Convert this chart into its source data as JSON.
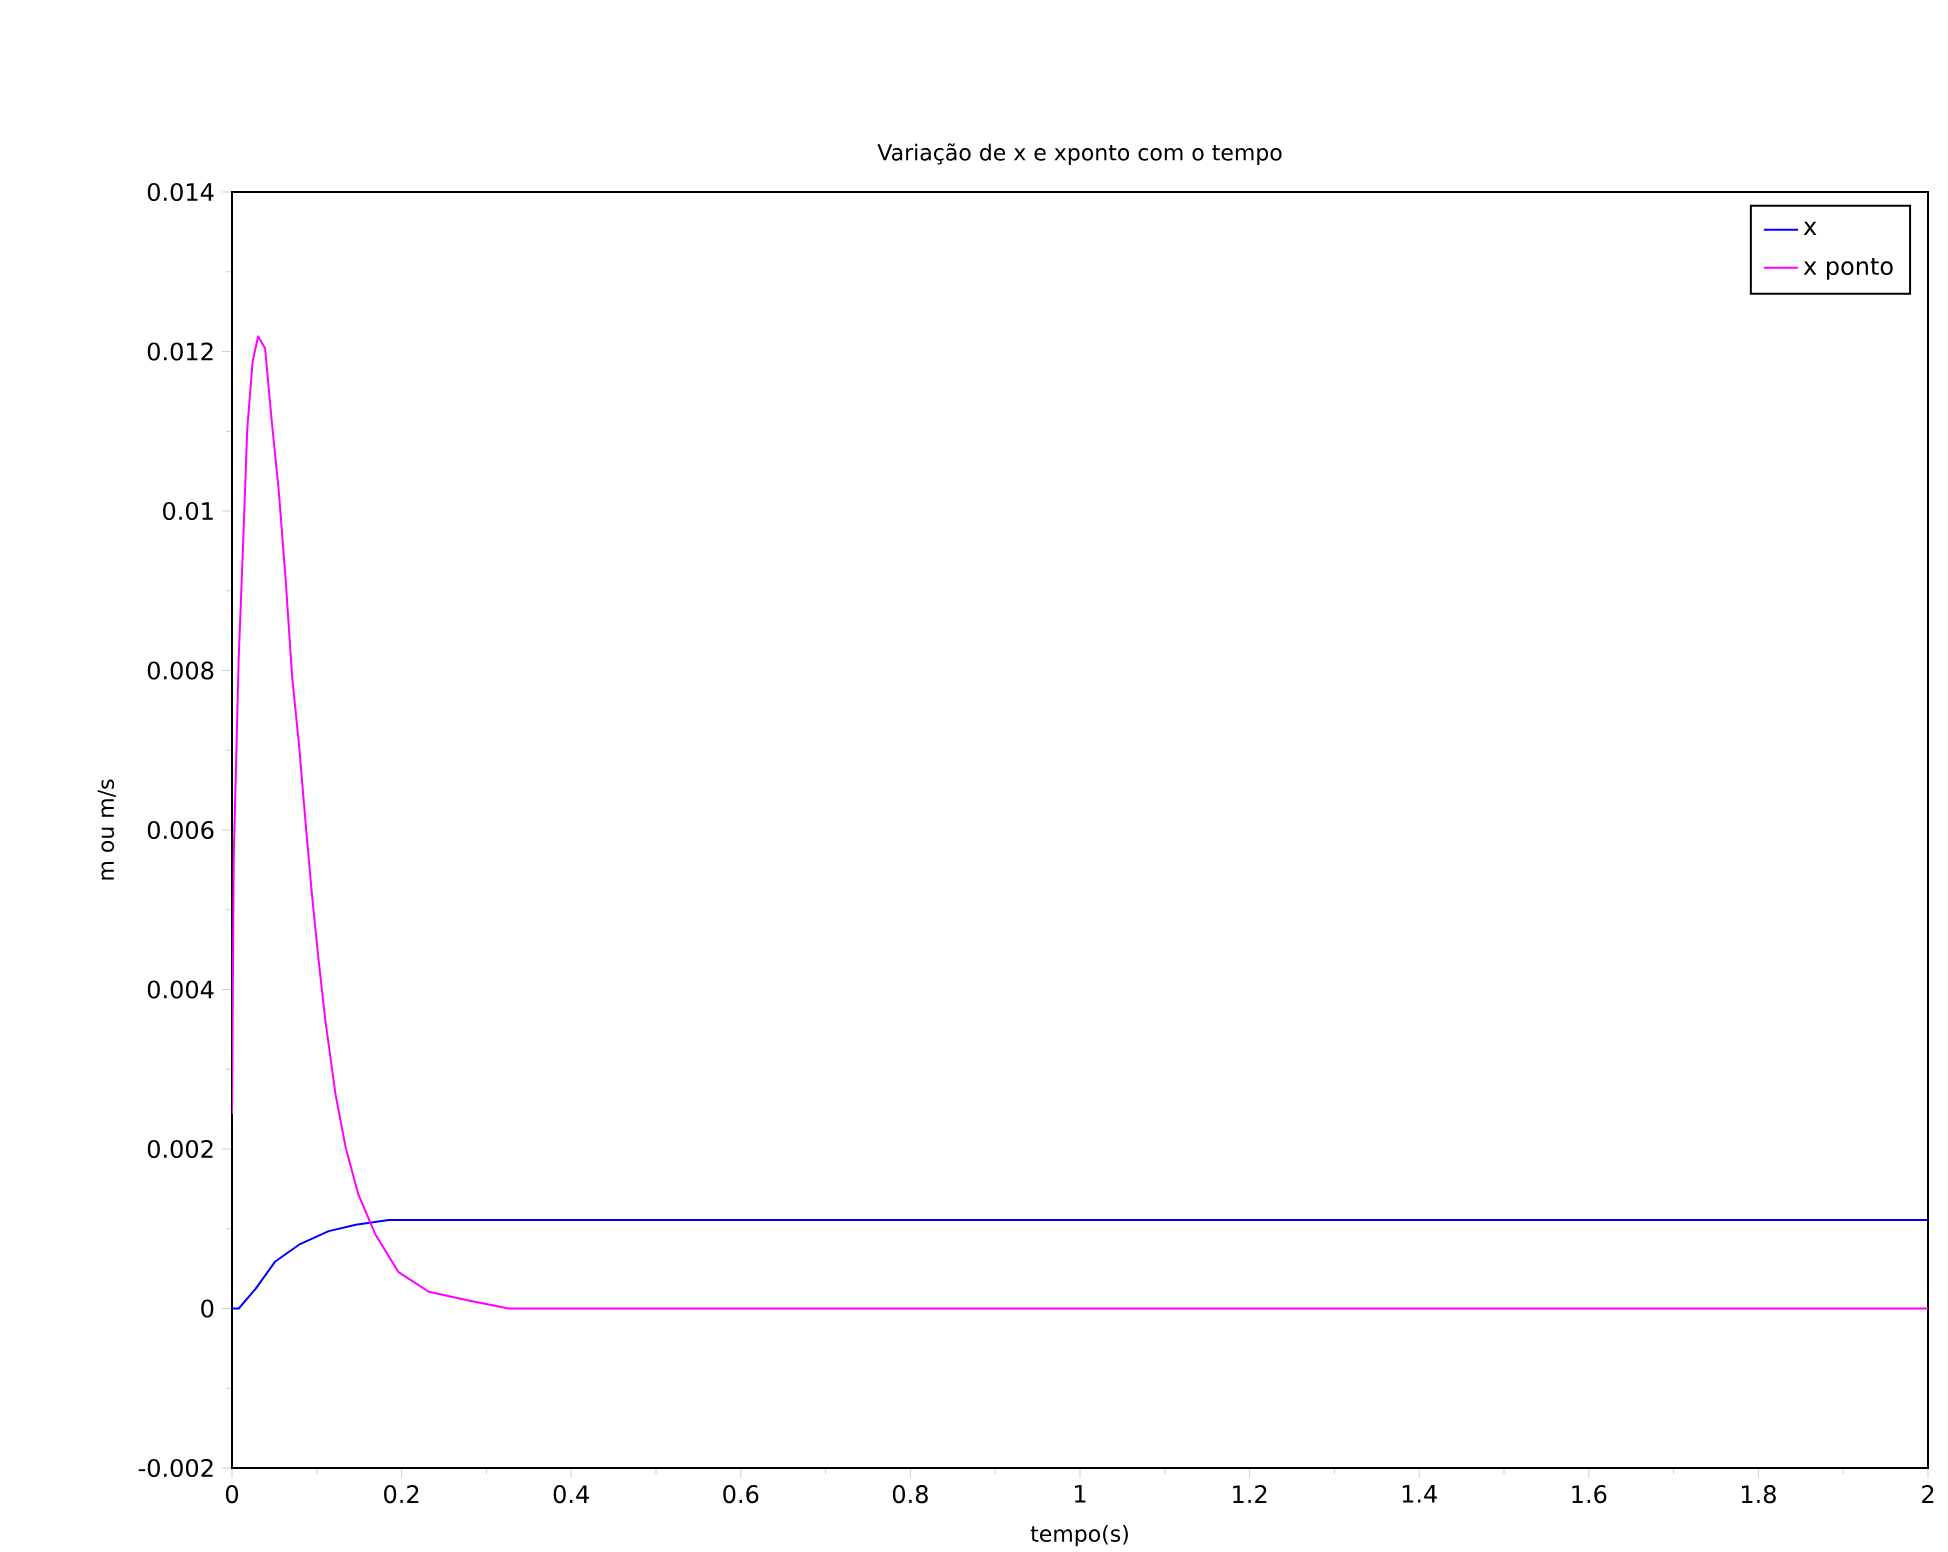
{
  "chart_data": {
    "type": "line",
    "title": "Variação de x e xponto com o tempo",
    "xlabel": "tempo(s)",
    "ylabel": "m ou m/s",
    "xlim": [
      0,
      2
    ],
    "ylim": [
      -0.002,
      0.014
    ],
    "xticks": [
      0,
      0.2,
      0.4,
      0.6,
      0.8,
      1,
      1.2,
      1.4,
      1.6,
      1.8,
      2
    ],
    "yticks": [
      -0.002,
      0,
      0.002,
      0.004,
      0.006,
      0.008,
      0.01,
      0.012,
      0.014
    ],
    "legend": "top right",
    "grid": false,
    "series": [
      {
        "name": "x",
        "color": "#0000ff",
        "x": [
          0,
          0.008,
          0.028,
          0.051,
          0.079,
          0.114,
          0.146,
          0.185,
          2
        ],
        "values": [
          0,
          0,
          0.00025,
          0.00059,
          0.0008,
          0.00097,
          0.00105,
          0.00111,
          0.00111
        ]
      },
      {
        "name": "x ponto",
        "color": "#ff00ff",
        "x": [
          0,
          0.002,
          0.0078,
          0.0134,
          0.018,
          0.0243,
          0.0307,
          0.039,
          0.047,
          0.055,
          0.063,
          0.071,
          0.079,
          0.087,
          0.094,
          0.102,
          0.11,
          0.122,
          0.134,
          0.149,
          0.169,
          0.196,
          0.232,
          0.279,
          0.326,
          2
        ],
        "values": [
          0.00244,
          0.00564,
          0.00812,
          0.00968,
          0.01103,
          0.01187,
          0.01219,
          0.01204,
          0.01111,
          0.01027,
          0.00918,
          0.00791,
          0.00707,
          0.00606,
          0.00522,
          0.00438,
          0.00362,
          0.00269,
          0.00202,
          0.00143,
          0.00093,
          0.00046,
          0.00021,
          0.0001,
          0,
          0
        ]
      }
    ]
  }
}
